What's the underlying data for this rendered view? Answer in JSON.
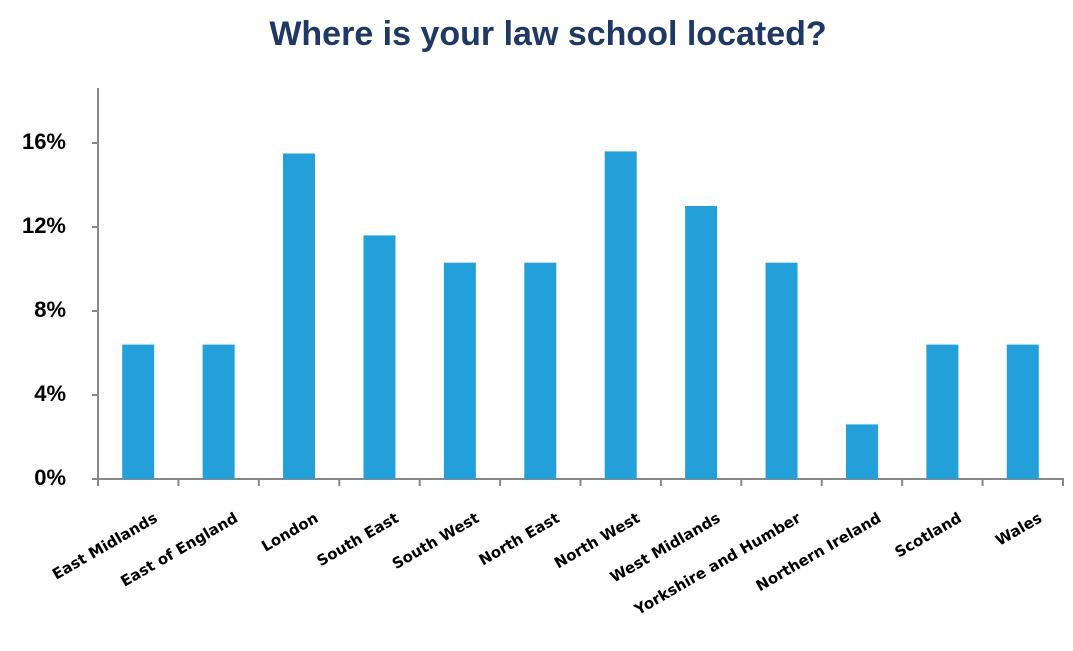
{
  "chart_data": {
    "type": "bar",
    "title": "Where is your law school located?",
    "categories": [
      "East Midlands",
      "East of England",
      "London",
      "South East",
      "South West",
      "North East",
      "North West",
      "West Midlands",
      "Yorkshire and Humber",
      "Northern Ireland",
      "Scotland",
      "Wales"
    ],
    "values": [
      6.4,
      6.4,
      15.5,
      11.6,
      10.3,
      10.3,
      15.6,
      13.0,
      10.3,
      2.6,
      6.4,
      6.4
    ],
    "color": "#239fda",
    "ylim": [
      0,
      18.6
    ],
    "yticks": [
      {
        "value": 0,
        "label": "0%"
      },
      {
        "value": 4,
        "label": "4%"
      },
      {
        "value": 8,
        "label": "8%"
      },
      {
        "value": 12,
        "label": "12%"
      },
      {
        "value": 16,
        "label": "16%"
      }
    ],
    "grid": false
  }
}
